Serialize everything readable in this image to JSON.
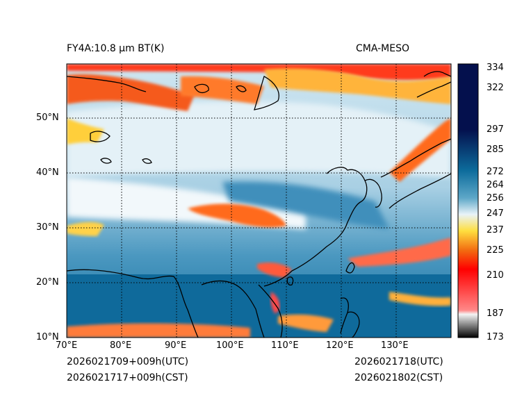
{
  "header": {
    "title_left": "FY4A:10.8 µm BT(K)",
    "title_right": "CMA-MESO"
  },
  "footer": {
    "init_utc": "2026021709+009h(UTC)",
    "init_cst": "2026021717+009h(CST)",
    "valid_utc": "2026021718(UTC)",
    "valid_cst": "2026021802(CST)"
  },
  "map": {
    "lon_range": [
      70,
      140
    ],
    "lat_range": [
      10,
      60
    ],
    "lon_ticks": [
      "70°E",
      "80°E",
      "90°E",
      "100°E",
      "110°E",
      "120°E",
      "130°E"
    ],
    "lat_ticks": [
      "10°N",
      "20°N",
      "30°N",
      "40°N",
      "50°N"
    ]
  },
  "colorbar": {
    "range": [
      173,
      337
    ],
    "ticks": [
      "173",
      "187",
      "210",
      "225",
      "237",
      "247",
      "256",
      "264",
      "272",
      "285",
      "297",
      "322",
      "334"
    ],
    "colors": {
      "c173": "#000000",
      "c187": "#f4f4f4",
      "c200": "#ff8888",
      "c225": "#ff0000",
      "c237": "#f26a10",
      "c247": "#ffdf3f",
      "c256": "#e8f3f8",
      "c272": "#5da7c8",
      "c297": "#0d6c9c",
      "c337": "#04104d"
    }
  }
}
